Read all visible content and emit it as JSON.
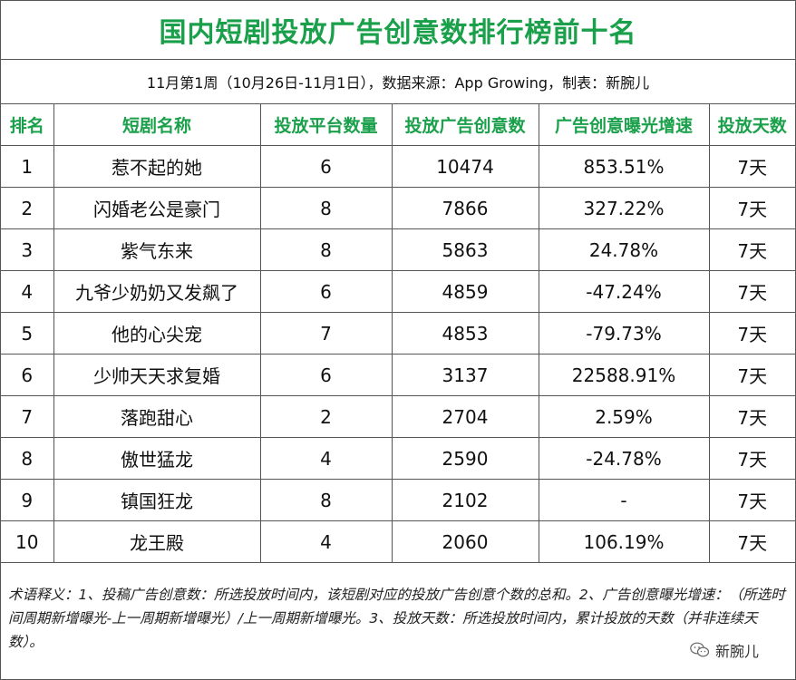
{
  "title": "国内短剧投放广告创意数排行榜前十名",
  "subtitle": "11月第1周（10月26日-11月1日），数据来源：App Growing，制表：新腕儿",
  "headers": [
    "排名",
    "短剧名称",
    "投放平台数量",
    "投放广告创意数",
    "广告创意曝光增速",
    "投放天数"
  ],
  "rows": [
    {
      "rank": "1",
      "name": "惹不起的她",
      "platforms": "6",
      "creatives": "10474",
      "growth": "853.51%",
      "trend": "pos",
      "days": "7天"
    },
    {
      "rank": "2",
      "name": "闪婚老公是豪门",
      "platforms": "8",
      "creatives": "7866",
      "growth": "327.22%",
      "trend": "pos",
      "days": "7天"
    },
    {
      "rank": "3",
      "name": "紫气东来",
      "platforms": "8",
      "creatives": "5863",
      "growth": "24.78%",
      "trend": "pos",
      "days": "7天"
    },
    {
      "rank": "4",
      "name": "九爷少奶奶又发飙了",
      "platforms": "6",
      "creatives": "4859",
      "growth": "-47.24%",
      "trend": "neg",
      "days": "7天"
    },
    {
      "rank": "5",
      "name": "他的心尖宠",
      "platforms": "7",
      "creatives": "4853",
      "growth": "-79.73%",
      "trend": "neg",
      "days": "7天"
    },
    {
      "rank": "6",
      "name": "少帅天天求复婚",
      "platforms": "6",
      "creatives": "3137",
      "growth": "22588.91%",
      "trend": "pos",
      "days": "7天"
    },
    {
      "rank": "7",
      "name": "落跑甜心",
      "platforms": "2",
      "creatives": "2704",
      "growth": "2.59%",
      "trend": "pos",
      "days": "7天"
    },
    {
      "rank": "8",
      "name": "傲世猛龙",
      "platforms": "4",
      "creatives": "2590",
      "growth": "-24.78%",
      "trend": "neg",
      "days": "7天"
    },
    {
      "rank": "9",
      "name": "镇国狂龙",
      "platforms": "8",
      "creatives": "2102",
      "growth": "-",
      "trend": "flat",
      "days": "7天"
    },
    {
      "rank": "10",
      "name": "龙王殿",
      "platforms": "4",
      "creatives": "2060",
      "growth": "106.19%",
      "trend": "pos",
      "days": "7天"
    }
  ],
  "note": "术语释义：1、投稿广告创意数：所选投放时间内，该短剧对应的投放广告创意个数的总和。2、广告创意曝光增速：（所选时间周期新增曝光-上一周期新增曝光）/上一周期新增曝光。3、投放天数：所选投放时间内，累计投放的天数（并非连续天数）。",
  "watermark": "新腕儿",
  "colors": {
    "accent": "#1aa04a",
    "positive": "#c8102e",
    "negative": "#1aa04a"
  },
  "icons": {
    "watermark": "wechat-icon"
  }
}
